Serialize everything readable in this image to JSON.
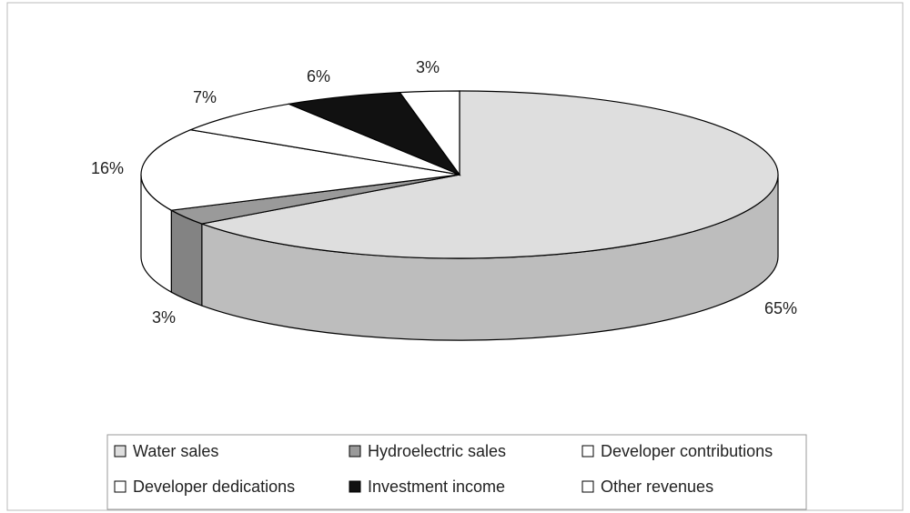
{
  "chart_data": {
    "type": "pie3d",
    "categories": [
      "Water sales",
      "Hydroelectric sales",
      "Developer contributions",
      "Developer dedications",
      "Investment income",
      "Other revenues"
    ],
    "values": [
      65,
      3,
      16,
      7,
      6,
      3
    ],
    "value_labels": [
      "65%",
      "3%",
      "16%",
      "7%",
      "6%",
      "3%"
    ],
    "colors": [
      "#dedede",
      "#9a9a9a",
      "#ffffff",
      "#ffffff",
      "#111111",
      "#ffffff"
    ],
    "legend": "bottom"
  }
}
